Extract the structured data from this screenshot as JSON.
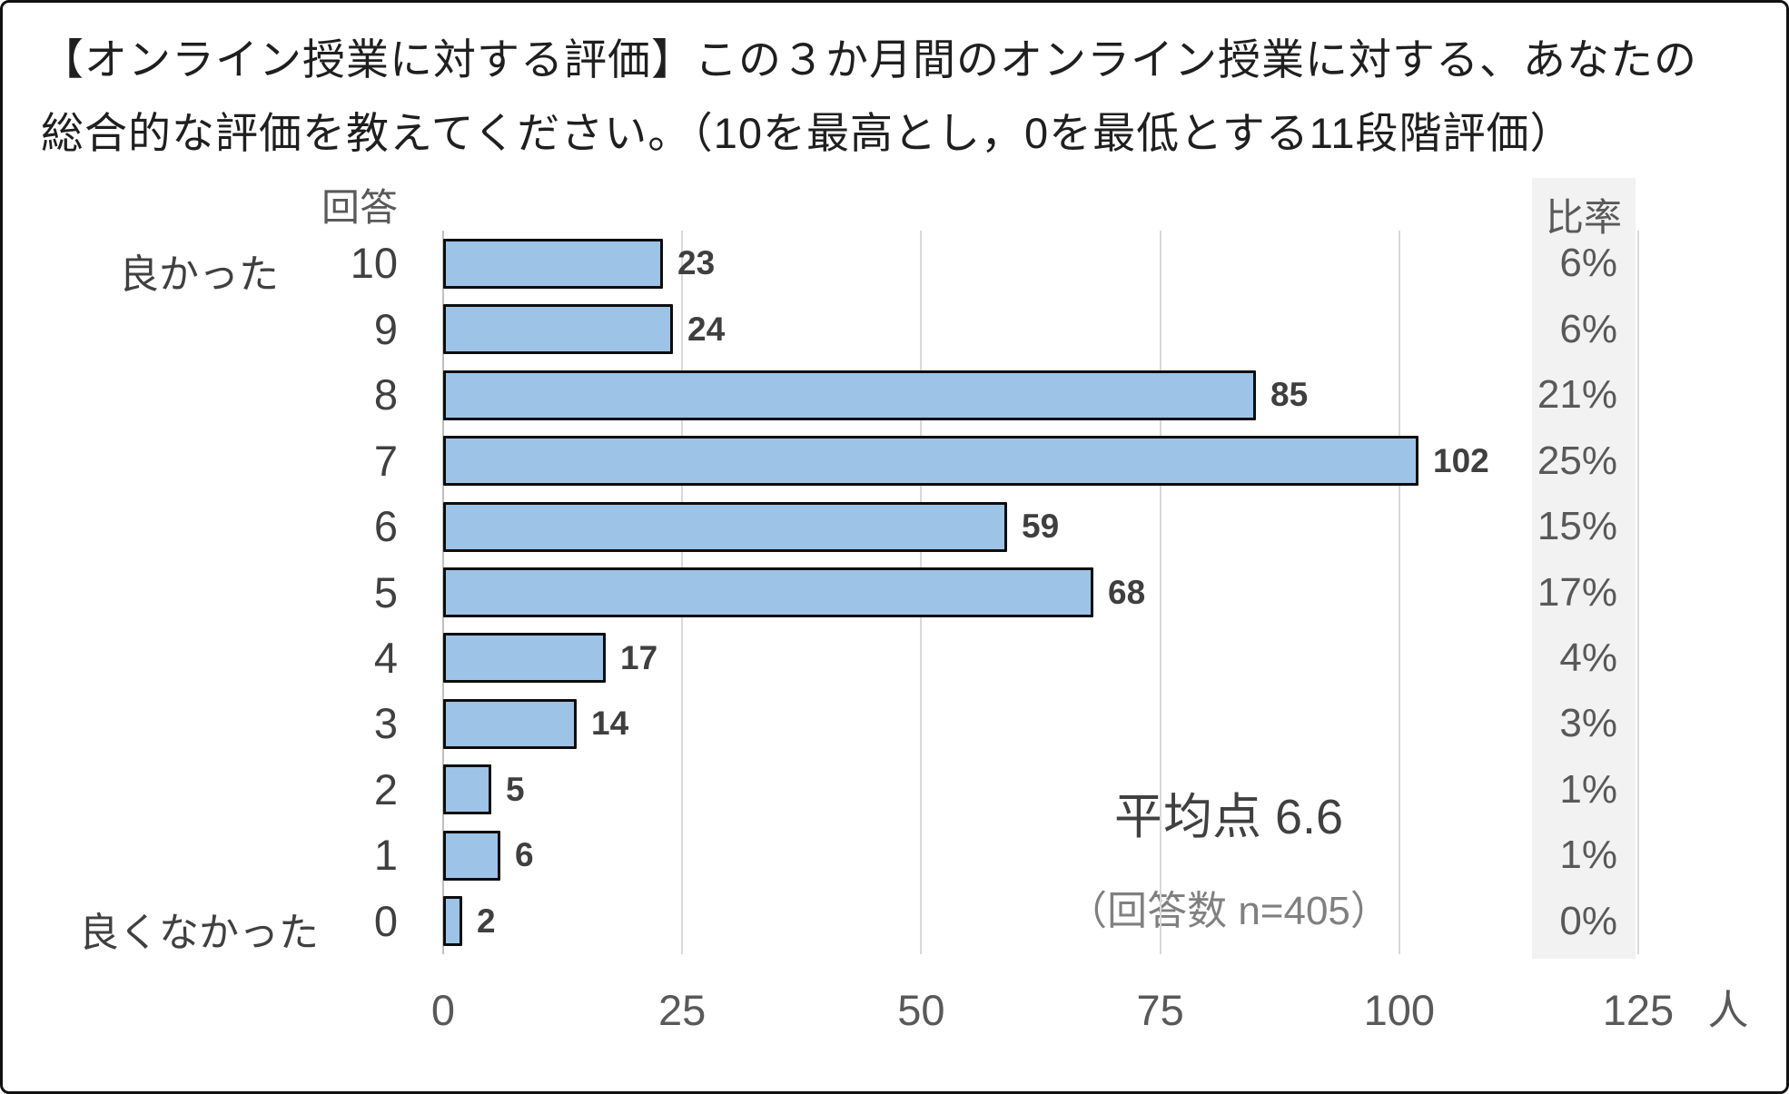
{
  "title": {
    "line1": "【オンライン授業に対する評価】この３か月間のオンライン授業に対する、あなたの",
    "line2": "総合的な評価を教えてください。（10を最高とし，0を最低とする11段階評価）"
  },
  "headers": {
    "answer": "回答",
    "ratio": "比率"
  },
  "side_labels": {
    "top": "良かった",
    "bottom": "良くなかった"
  },
  "annotation": {
    "average": "平均点 6.6",
    "sample": "（回答数 n=405）"
  },
  "x_axis": {
    "unit": "人"
  },
  "colors": {
    "bar_fill": "#9DC3E6",
    "bar_border": "#0D0D0D",
    "ratio_column_bg": "#F2F2F2",
    "gridline": "#D9D9D9",
    "axis_line": "#BFBFBF"
  },
  "chart_data": {
    "type": "bar",
    "orientation": "horizontal",
    "title": "【オンライン授業に対する評価】この３か月間のオンライン授業に対する、あなたの総合的な評価を教えてください。（10を最高とし，0を最低とする11段階評価）",
    "categories": [
      "10",
      "9",
      "8",
      "7",
      "6",
      "5",
      "4",
      "3",
      "2",
      "1",
      "0"
    ],
    "values": [
      23,
      24,
      85,
      102,
      59,
      68,
      17,
      14,
      5,
      6,
      2
    ],
    "percentages": [
      "6%",
      "6%",
      "21%",
      "25%",
      "15%",
      "17%",
      "4%",
      "3%",
      "1%",
      "1%",
      "0%"
    ],
    "category_axis_label": "回答",
    "ratio_column_label": "比率",
    "top_category_meaning": "良かった",
    "bottom_category_meaning": "良くなかった",
    "x_ticks": [
      0,
      25,
      50,
      75,
      100,
      125
    ],
    "xlim": [
      0,
      125
    ],
    "x_unit": "人",
    "grid": "vertical",
    "legend": "none",
    "annotations": [
      "平均点 6.6",
      "（回答数 n=405）"
    ],
    "n_total": 405,
    "average_score": 6.6
  }
}
